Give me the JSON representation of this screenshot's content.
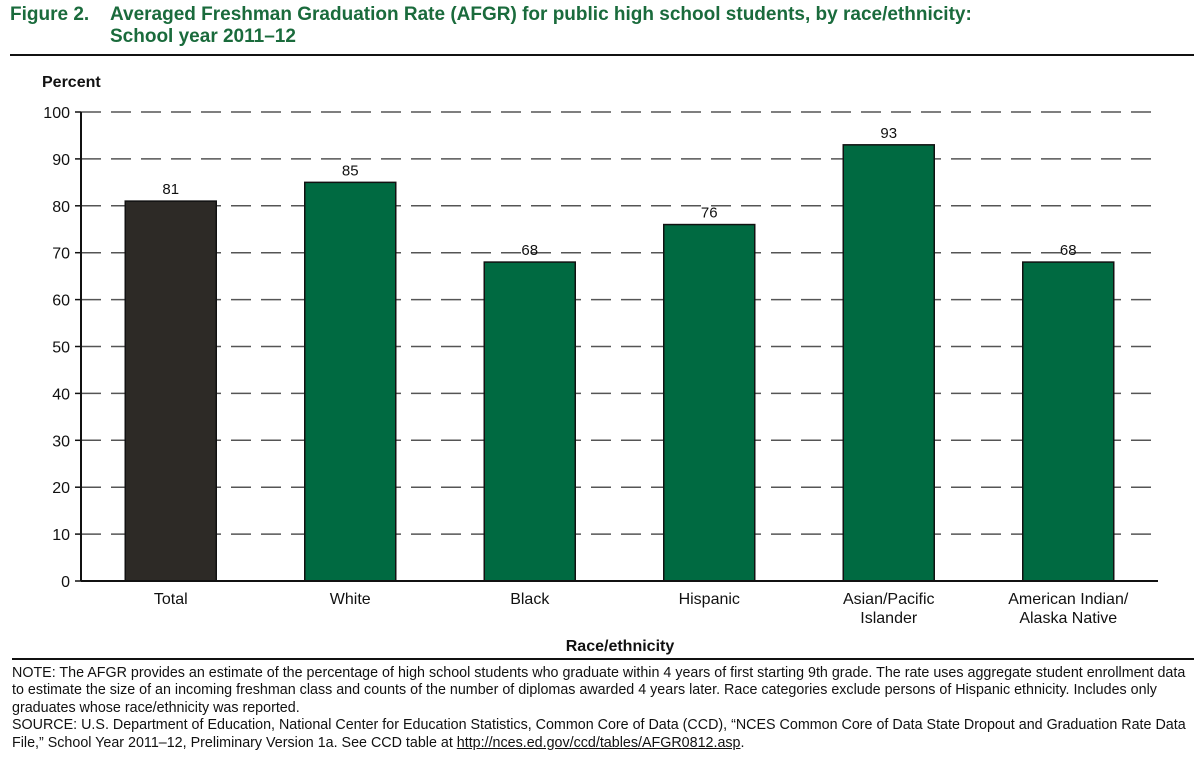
{
  "figure": {
    "number": "Figure 2.",
    "title_line1": "Averaged Freshman Graduation Rate (AFGR) for public high school students, by race/ethnicity:",
    "title_line2": "School year 2011–12"
  },
  "chart_data": {
    "type": "bar",
    "ylabel": "Percent",
    "xlabel": "Race/ethnicity",
    "ylim": [
      0,
      100
    ],
    "yticks": [
      0,
      10,
      20,
      30,
      40,
      50,
      60,
      70,
      80,
      90,
      100
    ],
    "grid": "dashed horizontal",
    "categories": [
      [
        "Total"
      ],
      [
        "White"
      ],
      [
        "Black"
      ],
      [
        "Hispanic"
      ],
      [
        "Asian/Pacific",
        "Islander"
      ],
      [
        "American Indian/",
        "Alaska Native"
      ]
    ],
    "values": [
      81,
      85,
      68,
      76,
      93,
      68
    ],
    "colors": [
      "#2d2a26",
      "#006a41",
      "#006a41",
      "#006a41",
      "#006a41",
      "#006a41"
    ]
  },
  "notes": {
    "note": "NOTE: The AFGR provides an estimate of the percentage of high school students who graduate within 4 years of first starting 9th grade. The rate uses aggregate student enrollment data to estimate the size of an incoming freshman class and counts of the number of diplomas awarded 4 years later. Race categories exclude persons of Hispanic ethnicity. Includes only graduates whose race/ethnicity was reported.",
    "source_text": "SOURCE:  U.S. Department of Education, National Center for Education Statistics, Common Core of Data (CCD), “NCES Common Core of Data State Dropout and Graduation Rate Data File,” School Year 2011–12, Preliminary Version 1a. See CCD table at ",
    "source_link": "http://nces.ed.gov/ccd/tables/AFGR0812.asp",
    "source_end": "."
  }
}
